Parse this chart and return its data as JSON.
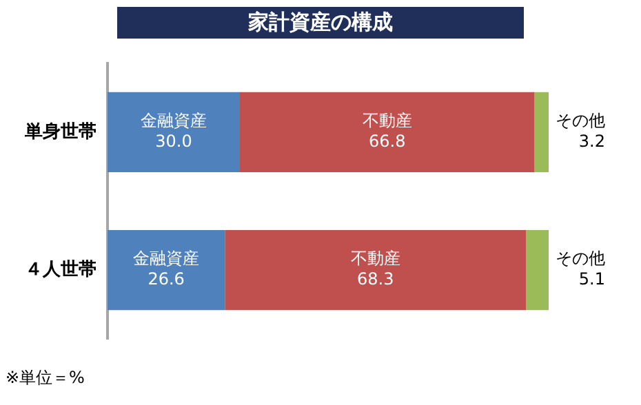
{
  "chart_data": {
    "type": "bar",
    "orientation": "horizontal",
    "stacked": true,
    "title": "家計資産の構成",
    "categories": [
      "単身世帯",
      "４人世帯"
    ],
    "series": [
      {
        "name": "金融資産",
        "color": "#4f81bd",
        "values": [
          30.0,
          26.6
        ],
        "value_labels": [
          "30.0",
          "26.6"
        ]
      },
      {
        "name": "不動産",
        "color": "#c0504d",
        "values": [
          66.8,
          68.3
        ],
        "value_labels": [
          "66.8",
          "68.3"
        ]
      },
      {
        "name": "その他",
        "color": "#9bbb59",
        "values": [
          3.2,
          5.1
        ],
        "value_labels": [
          "3.2",
          "5.1"
        ]
      }
    ],
    "xlim": [
      0,
      100
    ],
    "tick_labels": "y",
    "legend": false,
    "annotations": [
      "※単位＝%"
    ]
  }
}
